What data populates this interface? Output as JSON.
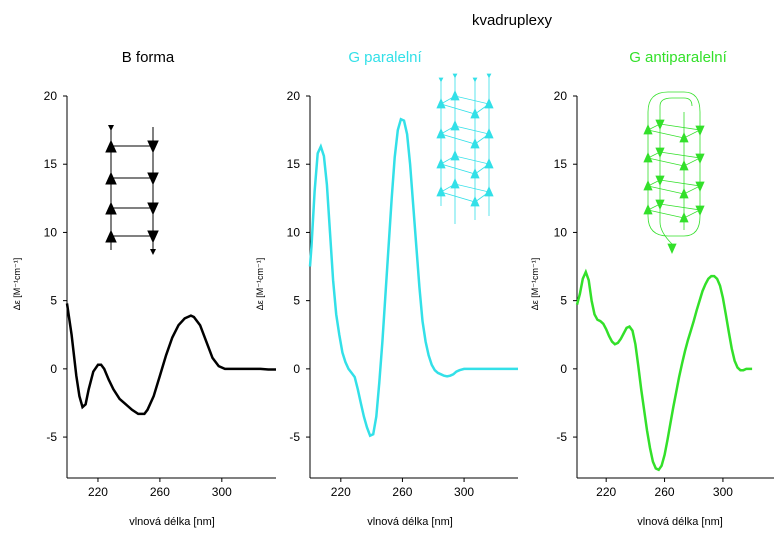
{
  "figure": {
    "group_title": "kvadruplexy"
  },
  "chart_data": [
    {
      "type": "line",
      "title": "B forma",
      "xlabel": "vlnová délka [nm]",
      "ylabel": "Δε [M⁻¹cm⁻¹]",
      "xlim": [
        200,
        335
      ],
      "ylim": [
        -8,
        20
      ],
      "x_ticks": [
        220,
        260,
        300
      ],
      "y_ticks": [
        -5,
        0,
        5,
        10,
        15,
        20
      ],
      "grid": false,
      "color": "#000000",
      "series": [
        {
          "x": [
            200,
            203,
            206,
            208,
            210,
            212,
            214,
            217,
            220,
            222,
            224,
            227,
            230,
            234,
            238,
            242,
            246,
            250,
            252,
            256,
            260,
            264,
            268,
            272,
            276,
            280,
            282,
            286,
            290,
            294,
            298,
            302,
            306,
            310,
            316,
            320,
            325,
            330,
            335
          ],
          "y": [
            4.8,
            2.5,
            -0.5,
            -2.0,
            -2.8,
            -2.6,
            -1.5,
            -0.2,
            0.3,
            0.3,
            0.0,
            -0.8,
            -1.5,
            -2.2,
            -2.6,
            -3.0,
            -3.3,
            -3.3,
            -3.0,
            -2.0,
            -0.5,
            1.0,
            2.3,
            3.2,
            3.7,
            3.9,
            3.8,
            3.2,
            2.0,
            0.8,
            0.2,
            0.0,
            0.0,
            0.0,
            0.0,
            0.0,
            0.0,
            -0.05,
            -0.05
          ]
        }
      ]
    },
    {
      "type": "line",
      "title": "G paralelní",
      "xlabel": "vlnová délka [nm]",
      "ylabel": "Δε [M⁻¹cm⁻¹]",
      "xlim": [
        200,
        335
      ],
      "ylim": [
        -8,
        20
      ],
      "x_ticks": [
        220,
        260,
        300
      ],
      "y_ticks": [
        -5,
        0,
        5,
        10,
        15,
        20
      ],
      "grid": false,
      "color": "#33e0e8",
      "series": [
        {
          "x": [
            200,
            201,
            203,
            205,
            207,
            209,
            211,
            213,
            215,
            217,
            219,
            221,
            223,
            225,
            227,
            229,
            231,
            233,
            235,
            237,
            239,
            241,
            243,
            245,
            247,
            249,
            251,
            253,
            255,
            257,
            259,
            261,
            263,
            265,
            267,
            269,
            271,
            273,
            275,
            277,
            279,
            281,
            283,
            285,
            287,
            289,
            291,
            293,
            295,
            297,
            300,
            305,
            310,
            315,
            320,
            325,
            330,
            335
          ],
          "y": [
            7.5,
            9.0,
            13.0,
            15.8,
            16.3,
            15.6,
            13.5,
            10.0,
            6.5,
            4.0,
            2.5,
            1.2,
            0.5,
            0.0,
            -0.3,
            -0.6,
            -1.5,
            -2.5,
            -3.5,
            -4.3,
            -4.9,
            -4.8,
            -3.5,
            -1.0,
            2.0,
            5.5,
            9.0,
            12.5,
            15.5,
            17.5,
            18.3,
            18.2,
            17.2,
            15.0,
            12.0,
            9.0,
            6.0,
            3.5,
            2.0,
            1.0,
            0.3,
            -0.1,
            -0.3,
            -0.4,
            -0.5,
            -0.55,
            -0.5,
            -0.4,
            -0.2,
            -0.1,
            0.0,
            0.0,
            0.0,
            0.0,
            0.0,
            0.0,
            0.0,
            0.0
          ]
        }
      ]
    },
    {
      "type": "line",
      "title": "G antiparalelní",
      "xlabel": "vlnová délka [nm]",
      "ylabel": "Δε [M⁻¹cm⁻¹]",
      "xlim": [
        200,
        335
      ],
      "ylim": [
        -8,
        20
      ],
      "x_ticks": [
        220,
        260,
        300
      ],
      "y_ticks": [
        -5,
        0,
        5,
        10,
        15,
        20
      ],
      "grid": false,
      "color": "#33e02a",
      "series": [
        {
          "x": [
            200,
            202,
            204,
            206,
            208,
            210,
            212,
            214,
            216,
            218,
            220,
            222,
            224,
            226,
            228,
            230,
            232,
            234,
            236,
            238,
            240,
            242,
            244,
            246,
            248,
            250,
            252,
            254,
            256,
            258,
            260,
            262,
            264,
            266,
            268,
            270,
            272,
            274,
            276,
            278,
            280,
            282,
            284,
            286,
            288,
            290,
            292,
            294,
            296,
            298,
            300,
            302,
            304,
            306,
            308,
            310,
            312,
            314,
            316,
            318,
            320
          ],
          "y": [
            4.7,
            5.5,
            6.6,
            7.1,
            6.5,
            5.0,
            4.0,
            3.6,
            3.5,
            3.3,
            2.9,
            2.4,
            2.0,
            1.8,
            1.9,
            2.2,
            2.6,
            3.0,
            3.1,
            2.8,
            1.8,
            0.2,
            -1.5,
            -3.0,
            -4.5,
            -5.8,
            -6.8,
            -7.3,
            -7.4,
            -7.1,
            -6.3,
            -5.2,
            -4.0,
            -2.8,
            -1.7,
            -0.6,
            0.4,
            1.3,
            2.1,
            2.8,
            3.5,
            4.3,
            5.0,
            5.7,
            6.2,
            6.6,
            6.8,
            6.8,
            6.6,
            6.1,
            5.2,
            4.0,
            2.7,
            1.5,
            0.6,
            0.1,
            -0.1,
            -0.1,
            0.0,
            0.0,
            0.0
          ]
        }
      ]
    }
  ]
}
